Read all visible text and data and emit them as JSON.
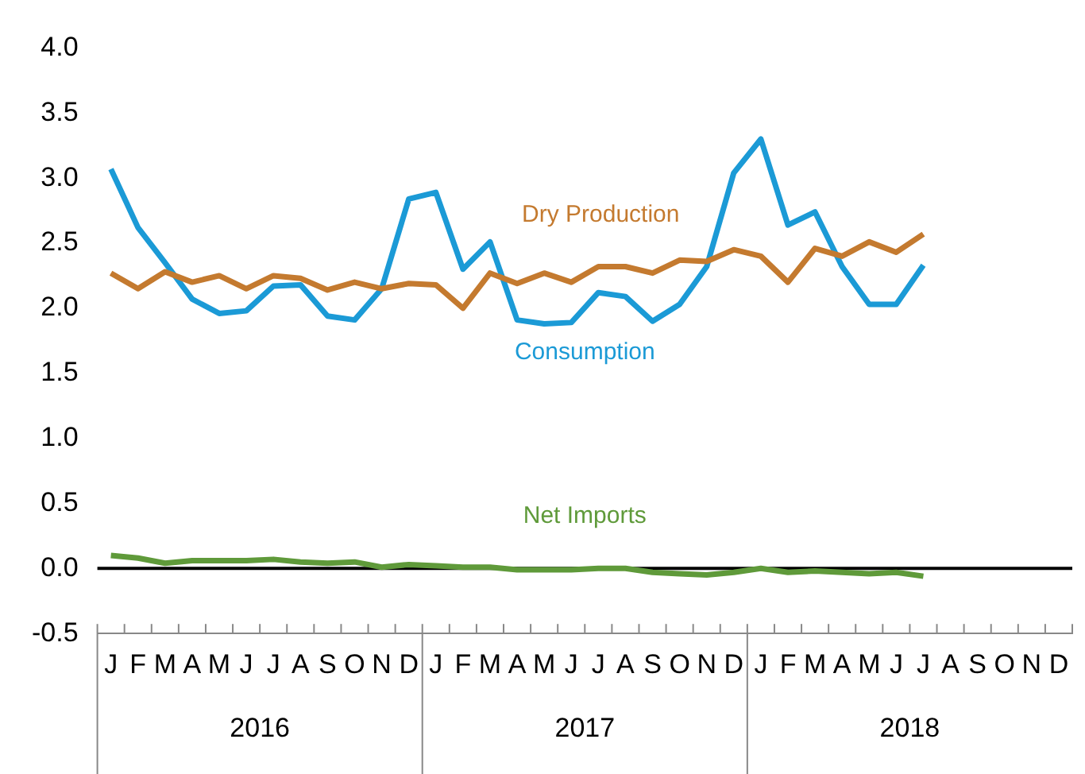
{
  "chart_data": {
    "type": "line",
    "categories": [
      "J",
      "F",
      "M",
      "A",
      "M",
      "J",
      "J",
      "A",
      "S",
      "O",
      "N",
      "D",
      "J",
      "F",
      "M",
      "A",
      "M",
      "J",
      "J",
      "A",
      "S",
      "O",
      "N",
      "D",
      "J",
      "F",
      "M",
      "A",
      "M",
      "J",
      "J",
      "A",
      "S",
      "O",
      "N",
      "D"
    ],
    "series": [
      {
        "name": "Dry Production",
        "color": "#c47a2f",
        "values": [
          2.27,
          2.15,
          2.28,
          2.2,
          2.25,
          2.15,
          2.25,
          2.23,
          2.14,
          2.2,
          2.15,
          2.19,
          2.18,
          2.0,
          2.27,
          2.19,
          2.27,
          2.2,
          2.32,
          2.32,
          2.27,
          2.37,
          2.36,
          2.45,
          2.4,
          2.2,
          2.46,
          2.4,
          2.51,
          2.43,
          2.57,
          null,
          null,
          null,
          null,
          null
        ]
      },
      {
        "name": "Consumption",
        "color": "#1b9ad6",
        "values": [
          3.07,
          2.62,
          2.35,
          2.07,
          1.96,
          1.98,
          2.17,
          2.18,
          1.94,
          1.91,
          2.15,
          2.84,
          2.89,
          2.3,
          2.51,
          1.91,
          1.88,
          1.89,
          2.12,
          2.09,
          1.9,
          2.03,
          2.32,
          3.04,
          3.3,
          2.64,
          2.74,
          2.32,
          2.03,
          2.03,
          2.33,
          null,
          null,
          null,
          null,
          null
        ]
      },
      {
        "name": "Net Imports",
        "color": "#5f9a3a",
        "values": [
          0.1,
          0.08,
          0.04,
          0.06,
          0.06,
          0.06,
          0.07,
          0.05,
          0.04,
          0.05,
          0.01,
          0.03,
          0.02,
          0.01,
          0.01,
          -0.01,
          -0.01,
          -0.01,
          0.0,
          0.0,
          -0.03,
          -0.04,
          -0.05,
          -0.03,
          0.0,
          -0.03,
          -0.02,
          -0.03,
          -0.04,
          -0.03,
          -0.06,
          null,
          null,
          null,
          null,
          null
        ]
      }
    ],
    "annotations": [
      "2016",
      "2017",
      "2018"
    ],
    "ylim": [
      -0.5,
      4
    ],
    "yticks": [
      {
        "value": -0.5,
        "label": "-0.5"
      },
      {
        "value": 0,
        "label": "0.0"
      },
      {
        "value": 0.5,
        "label": "0.5"
      },
      {
        "value": 1,
        "label": "1.0"
      },
      {
        "value": 1.5,
        "label": "1.5"
      },
      {
        "value": 2,
        "label": "2.0"
      },
      {
        "value": 2.5,
        "label": "2.5"
      },
      {
        "value": 3,
        "label": "3.0"
      },
      {
        "value": 3.5,
        "label": "3.5"
      },
      {
        "value": 4,
        "label": "4.0"
      }
    ],
    "ref_lines": [
      {
        "axis": "y",
        "value": 0,
        "color": "#000000"
      }
    ],
    "grid": false,
    "legend": false,
    "marker": "none",
    "line_style": "solid"
  }
}
